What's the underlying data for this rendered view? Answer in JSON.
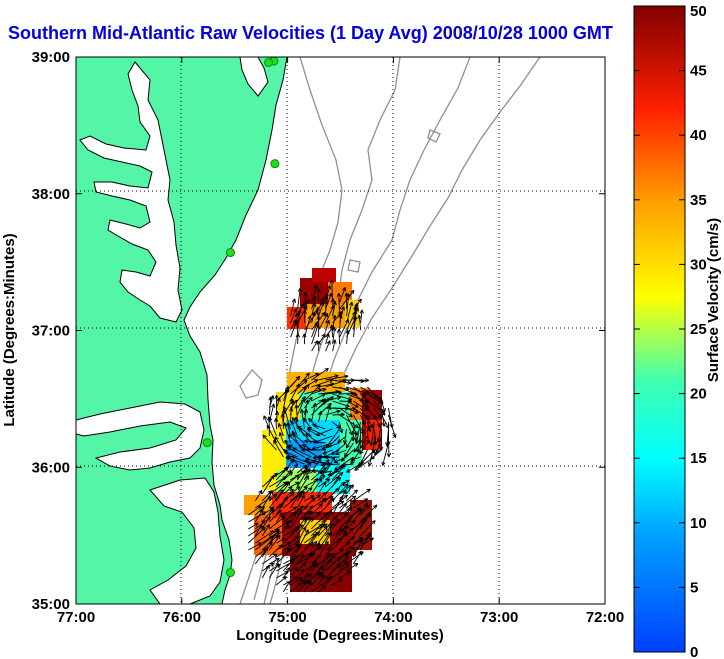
{
  "title": "Southern Mid-Atlantic Raw Velocities (1 Day Avg) 2008/10/28 1000 GMT",
  "xlabel": "Longitude (Degrees:Minutes)",
  "ylabel": "Latitude (Degrees:Minutes)",
  "x_ticks": [
    "77:00",
    "76:00",
    "75:00",
    "74:00",
    "73:00",
    "72:00"
  ],
  "y_ticks": [
    "39:00",
    "38:00",
    "37:00",
    "36:00",
    "35:00"
  ],
  "colorbar": {
    "label": "Surface Velocity (cm/s)",
    "ticks": [
      "0",
      "5",
      "10",
      "15",
      "20",
      "25",
      "30",
      "35",
      "40",
      "45",
      "50"
    ],
    "min": 0,
    "max": 50
  },
  "colors": {
    "land": "#55f5a8",
    "ocean": "#ffffff",
    "title": "#0000e0",
    "coast": "#000000",
    "bathymetry": "#909090",
    "station": "#22dd22"
  },
  "map": {
    "lon_range": [
      -77,
      -72
    ],
    "lat_range": [
      35,
      39
    ],
    "grid": true,
    "stations": [
      {
        "lon": -75.13,
        "lat": 38.97
      },
      {
        "lon": -75.18,
        "lat": 38.96
      },
      {
        "lon": -75.12,
        "lat": 38.22
      },
      {
        "lon": -75.54,
        "lat": 37.57
      },
      {
        "lon": -75.76,
        "lat": 36.18
      },
      {
        "lon": -75.54,
        "lat": 35.23
      }
    ],
    "velocity_patches": [
      {
        "name": "north-patch",
        "lon_range": [
          -75.0,
          -74.3
        ],
        "lat_range": [
          36.84,
          37.23
        ],
        "speed_range_cms": [
          20,
          50
        ]
      },
      {
        "name": "central-patch",
        "lon_range": [
          -75.2,
          -74.0
        ],
        "lat_range": [
          35.97,
          36.66
        ],
        "speed_range_cms": [
          5,
          50
        ]
      },
      {
        "name": "south-patch",
        "lon_range": [
          -75.4,
          -74.3
        ],
        "lat_range": [
          35.07,
          35.98
        ],
        "speed_range_cms": [
          20,
          50
        ]
      }
    ]
  }
}
